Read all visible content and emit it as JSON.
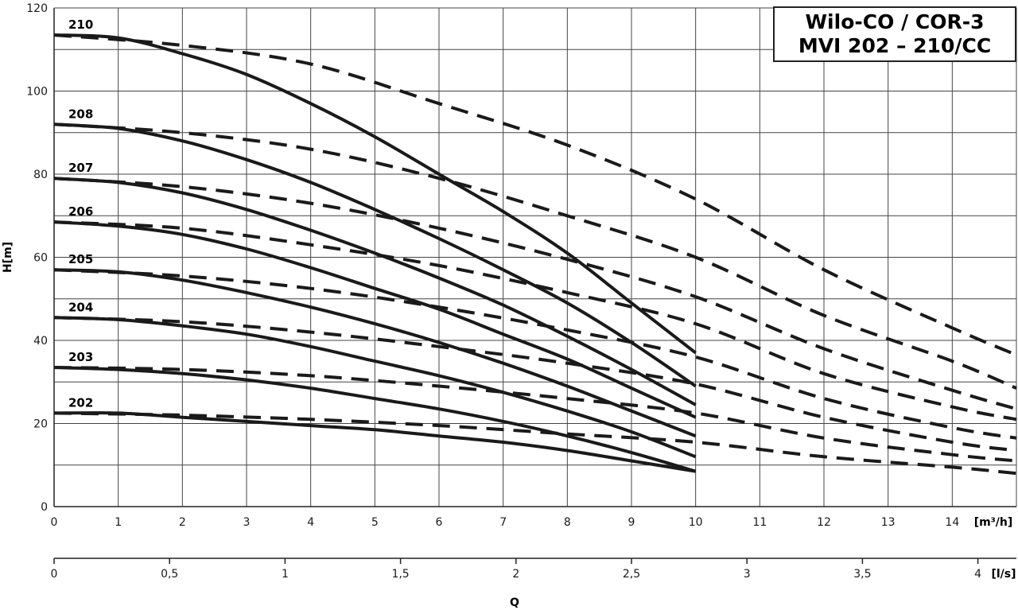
{
  "chart_data": {
    "type": "line",
    "title": [
      "Wilo-CO / COR-3",
      "MVI 202 – 210/CC"
    ],
    "ylabel": "H[m]",
    "xlabel": "Q",
    "x_unit": "[m³/h]",
    "x2_unit": "[l/s]",
    "xlim": [
      0,
      15
    ],
    "ylim": [
      0,
      120
    ],
    "x_ticks": [
      "0",
      "1",
      "2",
      "3",
      "4",
      "5",
      "6",
      "7",
      "8",
      "9",
      "10",
      "11",
      "12",
      "13",
      "14"
    ],
    "x2_ticks": [
      "0",
      "0,5",
      "1",
      "1,5",
      "2",
      "2,5",
      "3",
      "3,5",
      "4"
    ],
    "y_ticks": [
      "0",
      "20",
      "40",
      "60",
      "80",
      "100",
      "120"
    ],
    "grid": true,
    "series": [
      {
        "name": "210",
        "solid": [
          [
            0,
            113.5
          ],
          [
            1,
            112.8
          ],
          [
            2,
            109
          ],
          [
            3,
            104
          ],
          [
            4,
            97
          ],
          [
            5,
            89
          ],
          [
            6,
            80
          ],
          [
            7,
            71
          ],
          [
            8,
            61
          ],
          [
            9,
            49
          ],
          [
            10,
            37
          ]
        ],
        "dashed": [
          [
            0,
            113.5
          ],
          [
            2,
            111
          ],
          [
            4,
            106.5
          ],
          [
            6,
            97
          ],
          [
            8,
            87
          ],
          [
            10,
            74
          ],
          [
            12,
            57
          ],
          [
            14,
            43
          ],
          [
            15,
            36.5
          ]
        ]
      },
      {
        "name": "208",
        "solid": [
          [
            0,
            92
          ],
          [
            1,
            91
          ],
          [
            2,
            88
          ],
          [
            3,
            83.5
          ],
          [
            4,
            78
          ],
          [
            5,
            71.5
          ],
          [
            6,
            64.5
          ],
          [
            7,
            57
          ],
          [
            8,
            49
          ],
          [
            9,
            39.5
          ],
          [
            10,
            29
          ]
        ],
        "dashed": [
          [
            0,
            92
          ],
          [
            2,
            90
          ],
          [
            4,
            86
          ],
          [
            6,
            79
          ],
          [
            8,
            70
          ],
          [
            10,
            60
          ],
          [
            12,
            46
          ],
          [
            14,
            35
          ],
          [
            15,
            28.5
          ]
        ]
      },
      {
        "name": "207",
        "solid": [
          [
            0,
            79
          ],
          [
            1,
            78
          ],
          [
            2,
            75.5
          ],
          [
            3,
            71.5
          ],
          [
            4,
            66.5
          ],
          [
            5,
            61
          ],
          [
            6,
            55
          ],
          [
            7,
            48.5
          ],
          [
            8,
            41
          ],
          [
            9,
            33
          ],
          [
            10,
            24.5
          ]
        ],
        "dashed": [
          [
            0,
            79
          ],
          [
            2,
            77
          ],
          [
            4,
            73
          ],
          [
            6,
            67
          ],
          [
            8,
            59.5
          ],
          [
            10,
            50.5
          ],
          [
            12,
            38
          ],
          [
            14,
            28
          ],
          [
            15,
            23.5
          ]
        ]
      },
      {
        "name": "206",
        "solid": [
          [
            0,
            68.5
          ],
          [
            1,
            67.5
          ],
          [
            2,
            65.5
          ],
          [
            3,
            62
          ],
          [
            4,
            57.5
          ],
          [
            5,
            52.5
          ],
          [
            6,
            47.5
          ],
          [
            7,
            41.5
          ],
          [
            8,
            35.5
          ],
          [
            9,
            28.5
          ],
          [
            10,
            21.5
          ]
        ],
        "dashed": [
          [
            0,
            68.5
          ],
          [
            2,
            67
          ],
          [
            4,
            63
          ],
          [
            6,
            58
          ],
          [
            8,
            51.5
          ],
          [
            10,
            44
          ],
          [
            12,
            32
          ],
          [
            14,
            24
          ],
          [
            15,
            21
          ]
        ]
      },
      {
        "name": "205",
        "solid": [
          [
            0,
            57
          ],
          [
            1,
            56.5
          ],
          [
            2,
            54.5
          ],
          [
            3,
            51.5
          ],
          [
            4,
            48
          ],
          [
            5,
            44
          ],
          [
            6,
            39.5
          ],
          [
            7,
            34.5
          ],
          [
            8,
            29
          ],
          [
            9,
            23
          ],
          [
            10,
            17
          ]
        ],
        "dashed": [
          [
            0,
            57
          ],
          [
            2,
            55.5
          ],
          [
            4,
            52.5
          ],
          [
            6,
            48
          ],
          [
            8,
            42.5
          ],
          [
            10,
            36
          ],
          [
            12,
            26
          ],
          [
            14,
            19
          ],
          [
            15,
            16.5
          ]
        ]
      },
      {
        "name": "204",
        "solid": [
          [
            0,
            45.5
          ],
          [
            1,
            45
          ],
          [
            2,
            43.5
          ],
          [
            3,
            41.5
          ],
          [
            4,
            38.5
          ],
          [
            5,
            35
          ],
          [
            6,
            31.5
          ],
          [
            7,
            27.5
          ],
          [
            8,
            23
          ],
          [
            9,
            18
          ],
          [
            10,
            12
          ]
        ],
        "dashed": [
          [
            0,
            45.5
          ],
          [
            2,
            44.5
          ],
          [
            4,
            42
          ],
          [
            6,
            38.5
          ],
          [
            8,
            34.5
          ],
          [
            10,
            29.5
          ],
          [
            12,
            21.5
          ],
          [
            14,
            15.5
          ],
          [
            15,
            13.5
          ]
        ]
      },
      {
        "name": "203",
        "solid": [
          [
            0,
            33.5
          ],
          [
            1,
            33
          ],
          [
            2,
            32
          ],
          [
            3,
            30.5
          ],
          [
            4,
            28.5
          ],
          [
            5,
            26
          ],
          [
            6,
            23.5
          ],
          [
            7,
            20.5
          ],
          [
            8,
            17
          ],
          [
            9,
            13
          ],
          [
            10,
            8.5
          ]
        ],
        "dashed": [
          [
            0,
            33.5
          ],
          [
            2,
            33
          ],
          [
            4,
            31.5
          ],
          [
            6,
            29
          ],
          [
            8,
            26
          ],
          [
            10,
            22.5
          ],
          [
            12,
            16.5
          ],
          [
            14,
            12.5
          ],
          [
            15,
            11
          ]
        ]
      },
      {
        "name": "202",
        "solid": [
          [
            0,
            22.5
          ],
          [
            1,
            22.5
          ],
          [
            2,
            21.5
          ],
          [
            3,
            20.5
          ],
          [
            4,
            19.5
          ],
          [
            5,
            18.5
          ],
          [
            6,
            17
          ],
          [
            7,
            15.5
          ],
          [
            8,
            13.5
          ],
          [
            9,
            11
          ],
          [
            10,
            8.5
          ]
        ],
        "dashed": [
          [
            0,
            22.5
          ],
          [
            2,
            22
          ],
          [
            4,
            21
          ],
          [
            6,
            19.5
          ],
          [
            8,
            17.5
          ],
          [
            10,
            15.5
          ],
          [
            12,
            12
          ],
          [
            14,
            9.5
          ],
          [
            15,
            8
          ]
        ]
      }
    ]
  }
}
